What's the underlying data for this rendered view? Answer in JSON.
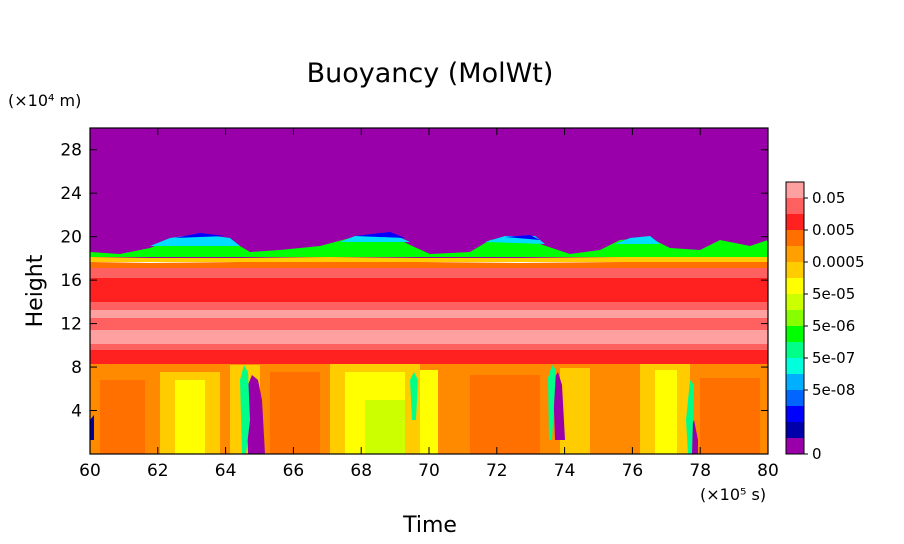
{
  "chart_data": {
    "type": "heatmap",
    "title": "Buoyancy (MolWt)",
    "xlabel": "Time",
    "ylabel": "Height",
    "x_unit": "(×10⁵ s)",
    "y_unit": "(×10⁴ m)",
    "xlim": [
      60,
      80
    ],
    "ylim": [
      0,
      30
    ],
    "x_ticks": [
      "60",
      "62",
      "64",
      "66",
      "68",
      "70",
      "72",
      "74",
      "76",
      "78",
      "80"
    ],
    "y_ticks": [
      "4",
      "8",
      "12",
      "16",
      "20",
      "24",
      "28"
    ],
    "colorbar": {
      "labels": [
        "0.05",
        "0.005",
        "0.0005",
        "5e-05",
        "5e-06",
        "5e-07",
        "5e-08",
        "0"
      ],
      "colors": [
        "#ffa0a0",
        "#ff6060",
        "#ff2020",
        "#ff7000",
        "#ffa000",
        "#ffcc00",
        "#ffff00",
        "#ccff00",
        "#88ff00",
        "#00ff00",
        "#00ff88",
        "#00ffdd",
        "#00b0ff",
        "#0066ff",
        "#0000ff",
        "#0000aa",
        "#9900aa"
      ]
    },
    "bands": [
      {
        "y0": 0,
        "y1": 9,
        "level": "0.0005–0.005 (orange/yellow)"
      },
      {
        "y0": 9,
        "y1": 10,
        "level": "0.005–0.05 (red)"
      },
      {
        "y0": 10,
        "y1": 14,
        "level": ">0.05 (light red/pink)"
      },
      {
        "y0": 14,
        "y1": 17.5,
        "level": "0.005–0.05 (red)"
      },
      {
        "y0": 17.5,
        "y1": 19,
        "level": "transition to 0"
      },
      {
        "y0": 19,
        "y1": 30,
        "level": "0 (purple)"
      }
    ],
    "grid": false,
    "legend": "right colorbar"
  }
}
